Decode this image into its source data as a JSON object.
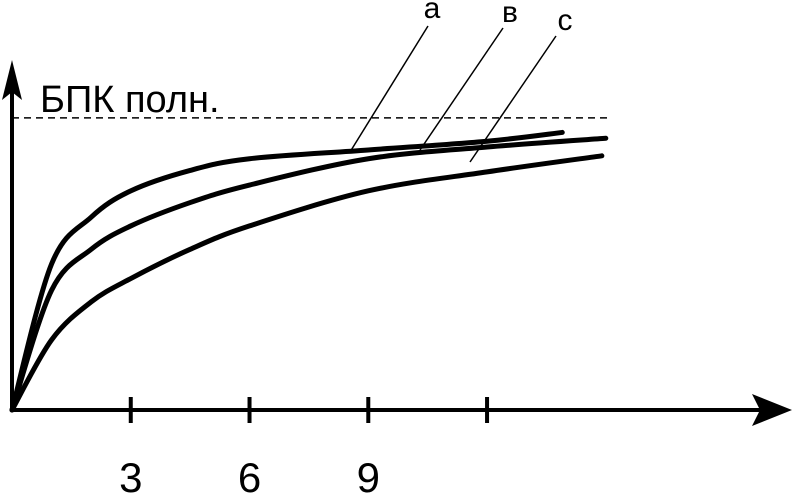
{
  "chart_data": {
    "type": "line",
    "ylabel": "БПК полн.",
    "xlim": [
      0,
      19.4
    ],
    "ylim": [
      0,
      115
    ],
    "xticks": [
      3,
      6,
      9
    ],
    "xticks_unlabeled": [
      12
    ],
    "ref_line": 100,
    "series": [
      {
        "name": "a",
        "color": "#000000",
        "x": [
          0,
          1,
          2,
          3,
          4.5,
          6,
          9,
          12,
          13.9
        ],
        "values": [
          0,
          50,
          66,
          75,
          82,
          86,
          89,
          92,
          95
        ]
      },
      {
        "name": "в",
        "color": "#000000",
        "x": [
          0,
          1,
          2,
          3,
          4.5,
          6,
          9,
          12,
          15
        ],
        "values": [
          0,
          41,
          55,
          63,
          71,
          77,
          86,
          90,
          93
        ]
      },
      {
        "name": "c",
        "color": "#000000",
        "x": [
          0,
          1,
          2,
          3,
          4.5,
          6,
          9,
          12,
          14.9
        ],
        "values": [
          0,
          24,
          37,
          45,
          55,
          63,
          75,
          81.5,
          87
        ]
      }
    ]
  }
}
